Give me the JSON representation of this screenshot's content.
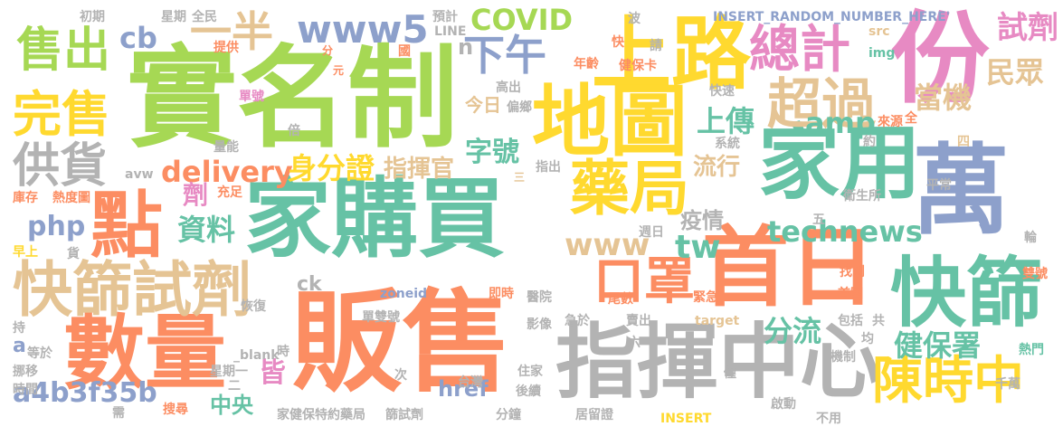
{
  "palette": {
    "green": "#a6d854",
    "teal": "#66c2a5",
    "blue": "#8da0cb",
    "orange": "#fc8d62",
    "pink": "#e78ac3",
    "yellow": "#ffd92f",
    "tan": "#e5c494",
    "gray": "#b3b3b3"
  },
  "words": [
    {
      "text": "實名制",
      "color": "#a6d854"
    },
    {
      "text": "販售",
      "color": "#fc8d62"
    },
    {
      "text": "家購買",
      "color": "#66c2a5"
    },
    {
      "text": "上路",
      "color": "#ffd92f"
    },
    {
      "text": "地圖",
      "color": "#ffd92f"
    },
    {
      "text": "份",
      "color": "#e78ac3"
    },
    {
      "text": "家用",
      "color": "#66c2a5"
    },
    {
      "text": "萬",
      "color": "#8da0cb"
    },
    {
      "text": "首日",
      "color": "#fc8d62"
    },
    {
      "text": "指揮中心",
      "color": "#b3b3b3"
    },
    {
      "text": "數量",
      "color": "#fc8d62"
    },
    {
      "text": "快篩試劑",
      "color": "#e5c494"
    },
    {
      "text": "快篩",
      "color": "#66c2a5"
    },
    {
      "text": "點",
      "color": "#fc8d62"
    },
    {
      "text": "藥局",
      "color": "#ffd92f"
    },
    {
      "text": "口罩",
      "color": "#fc8d62"
    },
    {
      "text": "陳時中",
      "color": "#ffd92f"
    },
    {
      "text": "總計",
      "color": "#e78ac3"
    },
    {
      "text": "超過",
      "color": "#e5c494"
    },
    {
      "text": "售出",
      "color": "#a6d854"
    },
    {
      "text": "完售",
      "color": "#ffd92f"
    },
    {
      "text": "供貨",
      "color": "#b3b3b3"
    },
    {
      "text": "www5",
      "color": "#8da0cb"
    },
    {
      "text": "下午",
      "color": "#8da0cb"
    },
    {
      "text": "一半",
      "color": "#e5c494"
    },
    {
      "text": "technews",
      "color": "#66c2a5"
    },
    {
      "text": "健保署",
      "color": "#66c2a5"
    },
    {
      "text": "www",
      "color": "#e5c494"
    },
    {
      "text": "COVID",
      "color": "#a6d854"
    },
    {
      "text": "delivery",
      "color": "#fc8d62"
    },
    {
      "text": "身分證",
      "color": "#ffd92f"
    },
    {
      "text": "資料",
      "color": "#66c2a5"
    },
    {
      "text": "cb",
      "color": "#8da0cb"
    },
    {
      "text": "php",
      "color": "#8da0cb"
    },
    {
      "text": "tw",
      "color": "#66c2a5"
    },
    {
      "text": "amp",
      "color": "#66c2a5"
    },
    {
      "text": "上傳",
      "color": "#66c2a5"
    },
    {
      "text": "當機",
      "color": "#e5c494"
    },
    {
      "text": "民眾",
      "color": "#e5c494"
    },
    {
      "text": "試劑",
      "color": "#e78ac3"
    },
    {
      "text": "分流",
      "color": "#66c2a5"
    },
    {
      "text": "字號",
      "color": "#66c2a5"
    },
    {
      "text": "a4b3f35b",
      "color": "#8da0cb"
    },
    {
      "text": "指揮官",
      "color": "#e5c494"
    },
    {
      "text": "流行",
      "color": "#e5c494"
    },
    {
      "text": "疫情",
      "color": "#b3b3b3"
    },
    {
      "text": "中央",
      "color": "#66c2a5"
    },
    {
      "text": "href",
      "color": "#8da0cb"
    },
    {
      "text": "皆",
      "color": "#e78ac3"
    },
    {
      "text": "今日",
      "color": "#e5c494"
    },
    {
      "text": "劑",
      "color": "#e78ac3"
    },
    {
      "text": "ck",
      "color": "#b3b3b3"
    },
    {
      "text": "n",
      "color": "#b3b3b3"
    },
    {
      "text": "a",
      "color": "#8da0cb"
    },
    {
      "text": "INSERT_RANDOM_NUMBER_HERE'",
      "color": "#8da0cb"
    },
    {
      "text": "波",
      "color": "#b3b3b3"
    },
    {
      "text": "請",
      "color": "#b3b3b3"
    },
    {
      "text": "src",
      "color": "#e5c494"
    },
    {
      "text": "img",
      "color": "#66c2a5"
    },
    {
      "text": "全",
      "color": "#fc8d62"
    },
    {
      "text": "來源",
      "color": "#fc8d62"
    },
    {
      "text": "約",
      "color": "#b3b3b3"
    },
    {
      "text": "四",
      "color": "#e5c494"
    },
    {
      "text": "平常",
      "color": "#b3b3b3"
    },
    {
      "text": "五",
      "color": "#b3b3b3"
    },
    {
      "text": "輪",
      "color": "#b3b3b3"
    },
    {
      "text": "雙號",
      "color": "#fc8d62"
    },
    {
      "text": "熱門",
      "color": "#66c2a5"
    },
    {
      "text": "千萬",
      "color": "#b3b3b3"
    },
    {
      "text": "初期",
      "color": "#b3b3b3"
    },
    {
      "text": "星期",
      "color": "#b3b3b3"
    },
    {
      "text": "全民",
      "color": "#b3b3b3"
    },
    {
      "text": "預計",
      "color": "#b3b3b3"
    },
    {
      "text": "LINE",
      "color": "#b3b3b3"
    },
    {
      "text": "提供",
      "color": "#fc8d62"
    },
    {
      "text": "分",
      "color": "#fc8d62"
    },
    {
      "text": "國",
      "color": "#fc8d62"
    },
    {
      "text": "元",
      "color": "#fc8d62"
    },
    {
      "text": "快",
      "color": "#fc8d62"
    },
    {
      "text": "年齡",
      "color": "#fc8d62"
    },
    {
      "text": "健保卡",
      "color": "#fc8d62"
    },
    {
      "text": "單號",
      "color": "#e78ac3"
    },
    {
      "text": "高出",
      "color": "#b3b3b3"
    },
    {
      "text": "偏鄉",
      "color": "#b3b3b3"
    },
    {
      "text": "快速",
      "color": "#b3b3b3"
    },
    {
      "text": "系統",
      "color": "#b3b3b3"
    },
    {
      "text": "衛生所",
      "color": "#b3b3b3"
    },
    {
      "text": "倍",
      "color": "#b3b3b3"
    },
    {
      "text": "量能",
      "color": "#b3b3b3"
    },
    {
      "text": "avw",
      "color": "#b3b3b3"
    },
    {
      "text": "三",
      "color": "#e5c494"
    },
    {
      "text": "指出",
      "color": "#b3b3b3"
    },
    {
      "text": "庫存",
      "color": "#fc8d62"
    },
    {
      "text": "熱度圖",
      "color": "#fc8d62"
    },
    {
      "text": "充足",
      "color": "#fc8d62"
    },
    {
      "text": "早上",
      "color": "#ffd92f"
    },
    {
      "text": "貨",
      "color": "#b3b3b3"
    },
    {
      "text": "週日",
      "color": "#b3b3b3"
    },
    {
      "text": "找到",
      "color": "#fc8d62"
    },
    {
      "text": "首圖",
      "color": "#fc8d62"
    },
    {
      "text": "zoneid",
      "color": "#8da0cb"
    },
    {
      "text": "即時",
      "color": "#fc8d62"
    },
    {
      "text": "醫院",
      "color": "#b3b3b3"
    },
    {
      "text": "尾數",
      "color": "#fc8d62"
    },
    {
      "text": "緊急",
      "color": "#fc8d62"
    },
    {
      "text": "恢復",
      "color": "#b3b3b3"
    },
    {
      "text": "急於",
      "color": "#b3b3b3"
    },
    {
      "text": "單雙號",
      "color": "#b3b3b3"
    },
    {
      "text": "影像",
      "color": "#b3b3b3"
    },
    {
      "text": "賣出",
      "color": "#b3b3b3"
    },
    {
      "text": "target",
      "color": "#e5c494"
    },
    {
      "text": "包括",
      "color": "#b3b3b3"
    },
    {
      "text": "共",
      "color": "#b3b3b3"
    },
    {
      "text": "持",
      "color": "#b3b3b3"
    },
    {
      "text": "_blank'",
      "color": "#b3b3b3"
    },
    {
      "text": "六",
      "color": "#b3b3b3"
    },
    {
      "text": "均",
      "color": "#b3b3b3"
    },
    {
      "text": "等於",
      "color": "#b3b3b3"
    },
    {
      "text": "時",
      "color": "#b3b3b3"
    },
    {
      "text": "機制",
      "color": "#b3b3b3"
    },
    {
      "text": "挪移",
      "color": "#b3b3b3"
    },
    {
      "text": "星期一",
      "color": "#b3b3b3"
    },
    {
      "text": "住家",
      "color": "#b3b3b3"
    },
    {
      "text": "時間",
      "color": "#b3b3b3"
    },
    {
      "text": "二",
      "color": "#b3b3b3"
    },
    {
      "text": "次",
      "color": "#b3b3b3"
    },
    {
      "text": "台灣",
      "color": "#b3b3b3"
    },
    {
      "text": "後續",
      "color": "#b3b3b3"
    },
    {
      "text": "僅",
      "color": "#b3b3b3"
    },
    {
      "text": "需",
      "color": "#b3b3b3"
    },
    {
      "text": "搜尋",
      "color": "#fc8d62"
    },
    {
      "text": "家健保特約藥局",
      "color": "#b3b3b3"
    },
    {
      "text": "篩試劑",
      "color": "#b3b3b3"
    },
    {
      "text": "分鐘",
      "color": "#b3b3b3"
    },
    {
      "text": "居留證",
      "color": "#b3b3b3"
    },
    {
      "text": "INSERT",
      "color": "#ffd92f"
    },
    {
      "text": "啟動",
      "color": "#b3b3b3"
    },
    {
      "text": "不用",
      "color": "#b3b3b3"
    }
  ]
}
